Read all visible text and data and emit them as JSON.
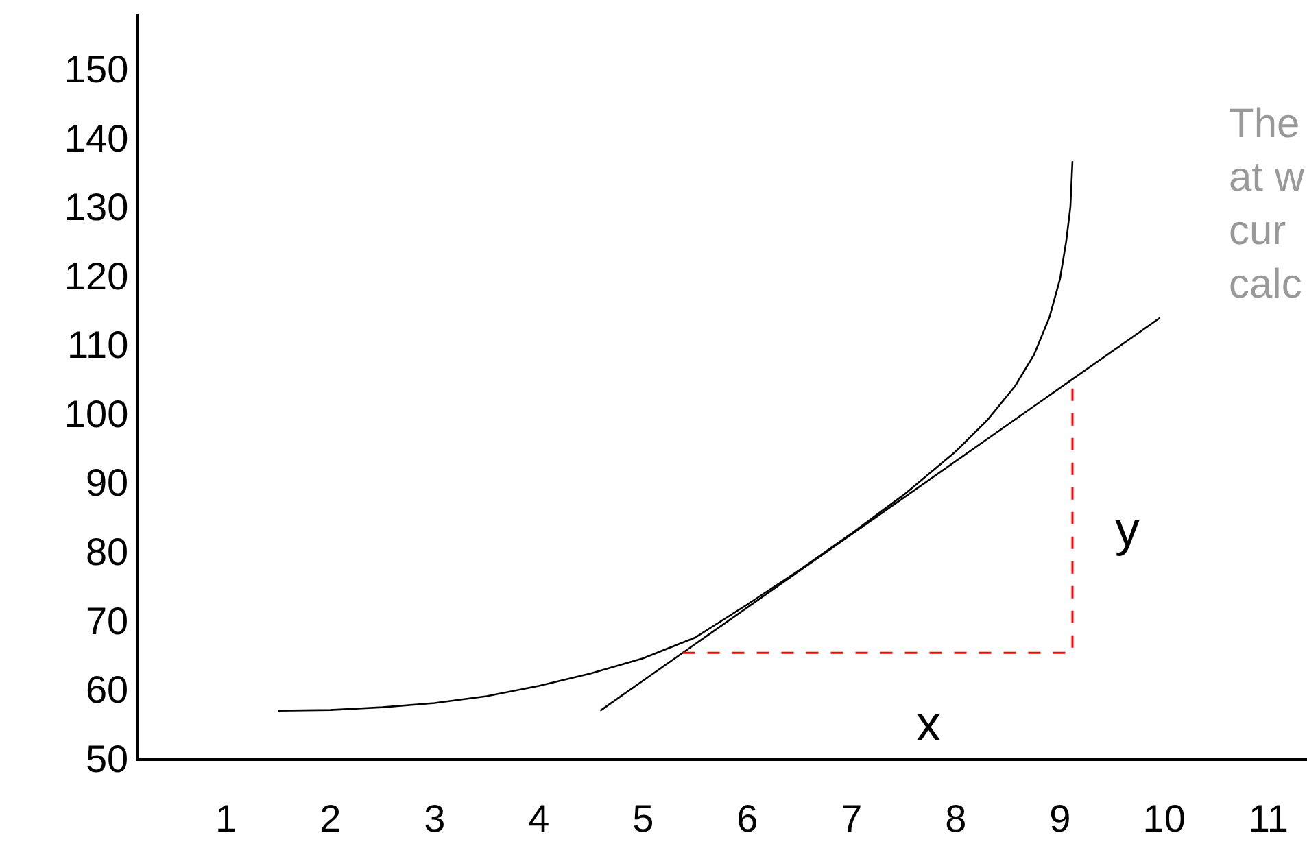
{
  "chart_data": {
    "type": "line",
    "xlim": [
      0.16,
      11.37
    ],
    "ylim": [
      50,
      158
    ],
    "xticks": [
      1,
      2,
      3,
      4,
      5,
      6,
      7,
      8,
      9,
      10,
      11
    ],
    "yticks": [
      50,
      60,
      70,
      80,
      90,
      100,
      110,
      120,
      130,
      140,
      150
    ],
    "marker": "none",
    "series": [
      {
        "color": "#000000",
        "line_style": "solid",
        "x": [
          1.5,
          2,
          2.5,
          3,
          3.5,
          4,
          4.5,
          5,
          5.5,
          6,
          6.5,
          7,
          7.5,
          8,
          8.3,
          8.57,
          8.75,
          8.9,
          9,
          9.06,
          9.1,
          9.12
        ],
        "values": [
          56.9,
          57,
          57.4,
          58,
          59,
          60.5,
          62.3,
          64.5,
          67.5,
          72.3,
          77.3,
          82.6,
          88.2,
          94.5,
          99,
          104,
          108.5,
          114,
          119.5,
          125,
          130,
          136.6
        ]
      },
      {
        "color": "#000000",
        "line_style": "solid",
        "x": [
          4.59,
          9.96
        ],
        "values": [
          56.9,
          113.9
        ]
      },
      {
        "color": "#ff0000",
        "line_style": "dashed",
        "x": [
          5.38,
          9.12,
          9.12
        ],
        "values": [
          65.3,
          65.3,
          103.8
        ]
      }
    ],
    "annotations": [
      "x",
      "y",
      "The\nat w\ncur\ncalc"
    ]
  }
}
